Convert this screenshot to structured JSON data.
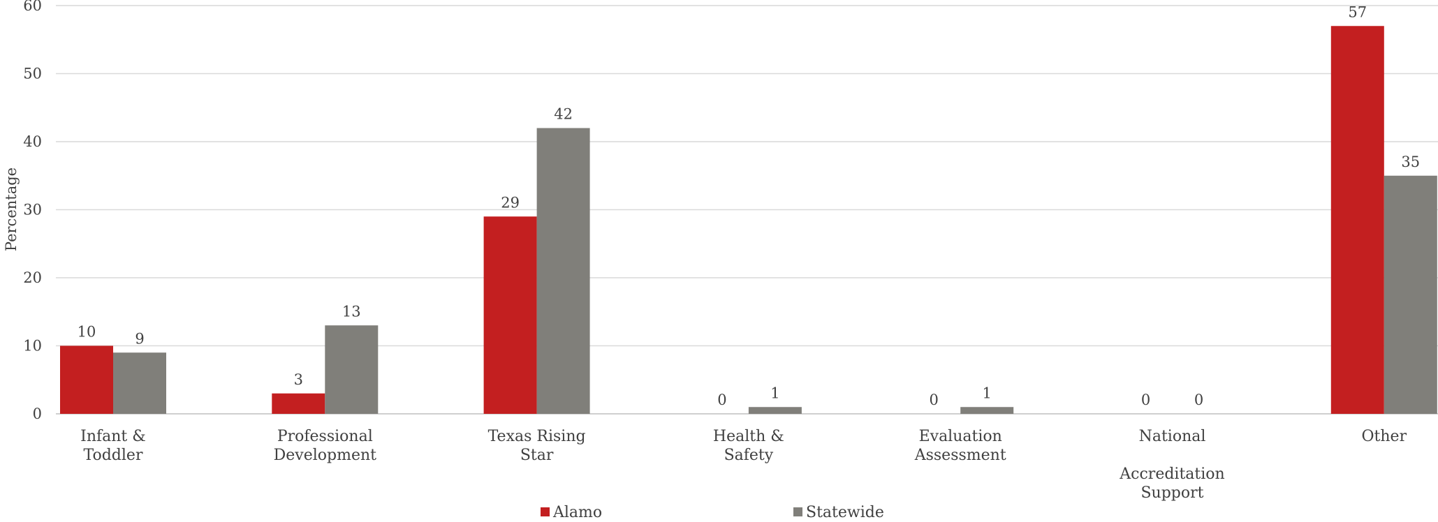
{
  "chart_data": {
    "type": "bar",
    "title": "",
    "ylabel": "Percentage",
    "xlabel": "",
    "ylim": [
      0,
      60
    ],
    "yticks": [
      0,
      10,
      20,
      30,
      40,
      50,
      60
    ],
    "grid": true,
    "legend": "bottom",
    "categories": [
      [
        "Infant &",
        "Toddler"
      ],
      [
        "Professional",
        "Development"
      ],
      [
        "Texas Rising",
        "Star"
      ],
      [
        "Health &",
        "Safety"
      ],
      [
        "Evaluation",
        "Assessment"
      ],
      [
        "National",
        "",
        "Accreditation",
        "Support"
      ],
      [
        "Other"
      ]
    ],
    "series": [
      {
        "name": "Alamo",
        "color": "#c31f20",
        "values": [
          10,
          3,
          29,
          0,
          0,
          0,
          57
        ]
      },
      {
        "name": "Statewide",
        "color": "#807f7a",
        "values": [
          9,
          13,
          42,
          1,
          1,
          0,
          35
        ]
      }
    ]
  }
}
